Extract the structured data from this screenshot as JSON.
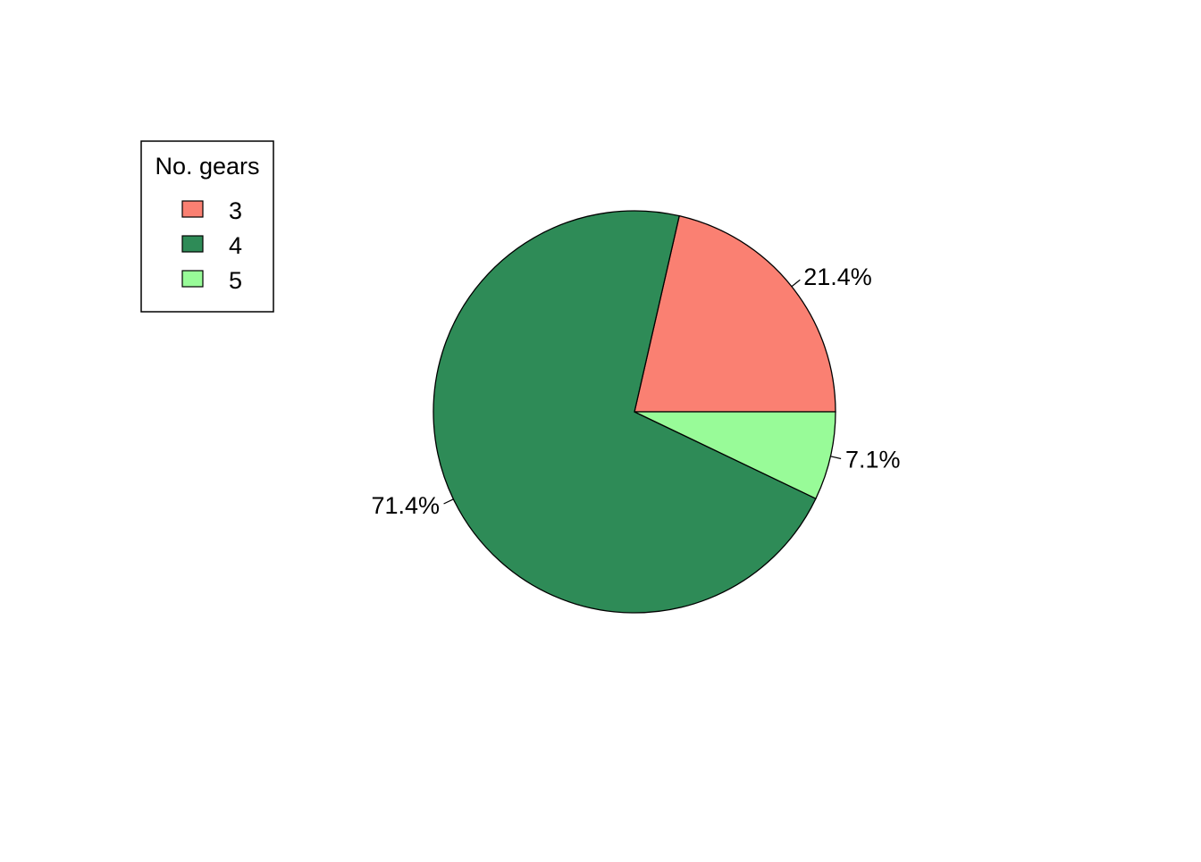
{
  "chart_data": {
    "type": "pie",
    "categories": [
      "3",
      "4",
      "5"
    ],
    "values": [
      21.4,
      71.4,
      7.1
    ],
    "value_labels": [
      "21.4%",
      "71.4%",
      "7.1%"
    ],
    "colors": [
      "#FA8072",
      "#2E8B57",
      "#98FB98"
    ],
    "legend": {
      "title": "No. gears",
      "placement": "top-left",
      "entries": [
        "3",
        "4",
        "5"
      ]
    },
    "start_angle_deg": 0,
    "direction": "counterclockwise",
    "outline_color": "#000000"
  }
}
